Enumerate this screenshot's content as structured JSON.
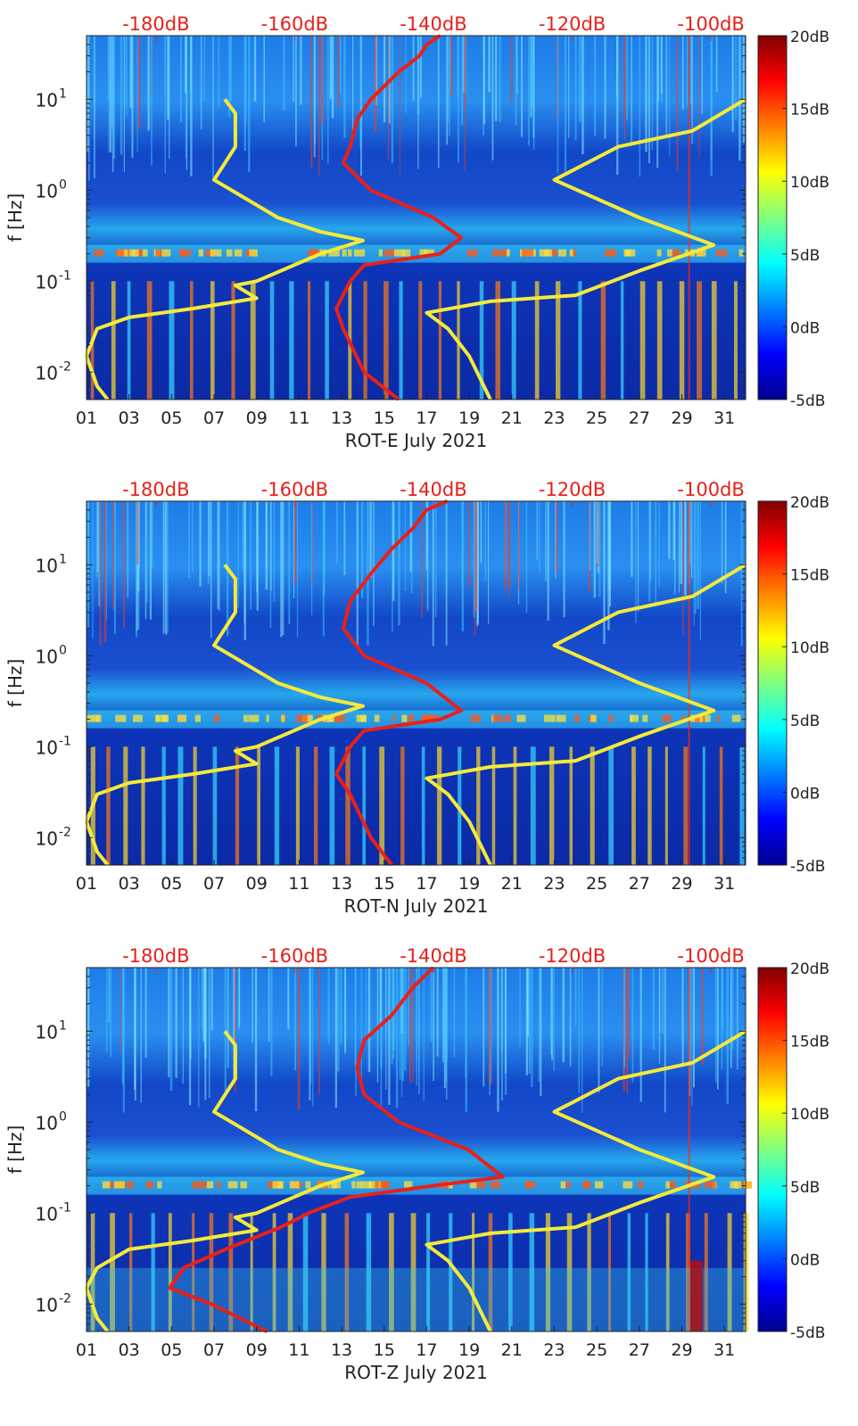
{
  "chart_data": [
    {
      "type": "heatmap",
      "title": "",
      "xlabel": "ROT-E July 2021",
      "ylabel": "f [Hz]",
      "x_ticks": [
        "01",
        "03",
        "05",
        "07",
        "09",
        "11",
        "13",
        "15",
        "17",
        "19",
        "21",
        "23",
        "25",
        "27",
        "29",
        "31"
      ],
      "x_range_days": [
        1,
        32
      ],
      "y_scale": "log",
      "y_range_hz": [
        0.005,
        50
      ],
      "y_ticks": [
        {
          "label_base": "10",
          "label_exp": "1",
          "value": 10
        },
        {
          "label_base": "10",
          "label_exp": "0",
          "value": 1
        },
        {
          "label_base": "10",
          "label_exp": "-1",
          "value": 0.1
        },
        {
          "label_base": "10",
          "label_exp": "-2",
          "value": 0.01
        }
      ],
      "top_axis_labels": [
        "-180dB",
        "-160dB",
        "-140dB",
        "-120dB",
        "-100dB"
      ],
      "top_axis_range_db": [
        -190,
        -95
      ],
      "colorbar": {
        "labels": [
          "20dB",
          "15dB",
          "10dB",
          "5dB",
          "0dB",
          "-5dB"
        ],
        "values": [
          20,
          15,
          10,
          5,
          0,
          -5
        ],
        "range": [
          -5,
          20
        ]
      },
      "series": [
        {
          "name": "red-psd-curve",
          "color": "#e8201a",
          "x_db": "top-axis",
          "points": [
            [
              -139,
              50
            ],
            [
              -141,
              40
            ],
            [
              -142,
              30
            ],
            [
              -145,
              20
            ],
            [
              -149,
              10
            ],
            [
              -151,
              6
            ],
            [
              -152,
              3
            ],
            [
              -153,
              2
            ],
            [
              -149,
              1
            ],
            [
              -140,
              0.5
            ],
            [
              -136,
              0.3
            ],
            [
              -139,
              0.2
            ],
            [
              -150,
              0.15
            ],
            [
              -152,
              0.1
            ],
            [
              -154,
              0.05
            ],
            [
              -153,
              0.03
            ],
            [
              -150,
              0.01
            ],
            [
              -145,
              0.005
            ]
          ]
        },
        {
          "name": "yellow-noise-model-low",
          "color": "#f5ea3a",
          "x_day": "bottom-axis",
          "points": [
            [
              7.5,
              10
            ],
            [
              8.0,
              7
            ],
            [
              8.0,
              3
            ],
            [
              7.0,
              1.3
            ],
            [
              10,
              0.5
            ],
            [
              12,
              0.35
            ],
            [
              14,
              0.28
            ],
            [
              12,
              0.2
            ],
            [
              9,
              0.1
            ],
            [
              8,
              0.09
            ],
            [
              9,
              0.065
            ],
            [
              6,
              0.05
            ],
            [
              3,
              0.04
            ],
            [
              1.5,
              0.03
            ],
            [
              1,
              0.015
            ],
            [
              1.5,
              0.007
            ],
            [
              2,
              0.005
            ]
          ]
        },
        {
          "name": "yellow-noise-model-high",
          "color": "#f5ea3a",
          "x_day": "bottom-axis",
          "points": [
            [
              32,
              10
            ],
            [
              29.5,
              4.5
            ],
            [
              26,
              3
            ],
            [
              23,
              1.3
            ],
            [
              27,
              0.5
            ],
            [
              30.5,
              0.25
            ],
            [
              27,
              0.13
            ],
            [
              24,
              0.07
            ],
            [
              20,
              0.06
            ],
            [
              17,
              0.045
            ],
            [
              18,
              0.03
            ],
            [
              19,
              0.015
            ],
            [
              20,
              0.005
            ]
          ]
        }
      ]
    },
    {
      "type": "heatmap",
      "title": "",
      "xlabel": "ROT-N July 2021",
      "ylabel": "f [Hz]",
      "x_ticks": [
        "01",
        "03",
        "05",
        "07",
        "09",
        "11",
        "13",
        "15",
        "17",
        "19",
        "21",
        "23",
        "25",
        "27",
        "29",
        "31"
      ],
      "x_range_days": [
        1,
        32
      ],
      "y_scale": "log",
      "y_range_hz": [
        0.005,
        50
      ],
      "y_ticks": [
        {
          "label_base": "10",
          "label_exp": "1",
          "value": 10
        },
        {
          "label_base": "10",
          "label_exp": "0",
          "value": 1
        },
        {
          "label_base": "10",
          "label_exp": "-1",
          "value": 0.1
        },
        {
          "label_base": "10",
          "label_exp": "-2",
          "value": 0.01
        }
      ],
      "top_axis_labels": [
        "-180dB",
        "-160dB",
        "-140dB",
        "-120dB",
        "-100dB"
      ],
      "top_axis_range_db": [
        -190,
        -95
      ],
      "colorbar": {
        "labels": [
          "20dB",
          "15dB",
          "10dB",
          "5dB",
          "0dB",
          "-5dB"
        ],
        "values": [
          20,
          15,
          10,
          5,
          0,
          -5
        ],
        "range": [
          -5,
          20
        ]
      },
      "series": [
        {
          "name": "red-psd-curve",
          "color": "#e8201a",
          "x_db": "top-axis",
          "points": [
            [
              -138,
              50
            ],
            [
              -141,
              40
            ],
            [
              -143,
              25
            ],
            [
              -146,
              15
            ],
            [
              -149,
              8
            ],
            [
              -152,
              4
            ],
            [
              -153,
              2
            ],
            [
              -150,
              1
            ],
            [
              -141,
              0.5
            ],
            [
              -136,
              0.25
            ],
            [
              -139,
              0.2
            ],
            [
              -150,
              0.15
            ],
            [
              -152,
              0.1
            ],
            [
              -154,
              0.05
            ],
            [
              -152,
              0.03
            ],
            [
              -149,
              0.01
            ],
            [
              -146,
              0.005
            ]
          ]
        },
        {
          "name": "yellow-noise-model-low",
          "color": "#f5ea3a",
          "x_day": "bottom-axis",
          "points": [
            [
              7.5,
              10
            ],
            [
              8.0,
              7
            ],
            [
              8.0,
              3
            ],
            [
              7.0,
              1.3
            ],
            [
              10,
              0.5
            ],
            [
              12,
              0.35
            ],
            [
              14,
              0.28
            ],
            [
              12,
              0.2
            ],
            [
              9,
              0.1
            ],
            [
              8,
              0.09
            ],
            [
              9,
              0.065
            ],
            [
              6,
              0.05
            ],
            [
              3,
              0.04
            ],
            [
              1.5,
              0.03
            ],
            [
              1,
              0.015
            ],
            [
              1.5,
              0.007
            ],
            [
              2,
              0.005
            ]
          ]
        },
        {
          "name": "yellow-noise-model-high",
          "color": "#f5ea3a",
          "x_day": "bottom-axis",
          "points": [
            [
              32,
              10
            ],
            [
              29.5,
              4.5
            ],
            [
              26,
              3
            ],
            [
              23,
              1.3
            ],
            [
              27,
              0.5
            ],
            [
              30.5,
              0.25
            ],
            [
              27,
              0.13
            ],
            [
              24,
              0.07
            ],
            [
              20,
              0.06
            ],
            [
              17,
              0.045
            ],
            [
              18,
              0.03
            ],
            [
              19,
              0.015
            ],
            [
              20,
              0.005
            ]
          ]
        }
      ]
    },
    {
      "type": "heatmap",
      "title": "",
      "xlabel": "ROT-Z July 2021",
      "ylabel": "f [Hz]",
      "x_ticks": [
        "01",
        "03",
        "05",
        "07",
        "09",
        "11",
        "13",
        "15",
        "17",
        "19",
        "21",
        "23",
        "25",
        "27",
        "29",
        "31"
      ],
      "x_range_days": [
        1,
        32
      ],
      "y_scale": "log",
      "y_range_hz": [
        0.005,
        50
      ],
      "y_ticks": [
        {
          "label_base": "10",
          "label_exp": "1",
          "value": 10
        },
        {
          "label_base": "10",
          "label_exp": "0",
          "value": 1
        },
        {
          "label_base": "10",
          "label_exp": "-1",
          "value": 0.1
        },
        {
          "label_base": "10",
          "label_exp": "-2",
          "value": 0.01
        }
      ],
      "top_axis_labels": [
        "-180dB",
        "-160dB",
        "-140dB",
        "-120dB",
        "-100dB"
      ],
      "top_axis_range_db": [
        -190,
        -95
      ],
      "colorbar": {
        "labels": [
          "20dB",
          "15dB",
          "10dB",
          "5dB",
          "0dB",
          "-5dB"
        ],
        "values": [
          20,
          15,
          10,
          5,
          0,
          -5
        ],
        "range": [
          -5,
          20
        ]
      },
      "series": [
        {
          "name": "red-psd-curve",
          "color": "#e8201a",
          "x_db": "top-axis",
          "points": [
            [
              -140,
              50
            ],
            [
              -143,
              30
            ],
            [
              -146,
              15
            ],
            [
              -150,
              8
            ],
            [
              -151,
              4
            ],
            [
              -150,
              2
            ],
            [
              -145,
              1
            ],
            [
              -135,
              0.5
            ],
            [
              -130,
              0.25
            ],
            [
              -140,
              0.2
            ],
            [
              -152,
              0.15
            ],
            [
              -158,
              0.1
            ],
            [
              -162,
              0.07
            ],
            [
              -170,
              0.04
            ],
            [
              -176,
              0.025
            ],
            [
              -178,
              0.015
            ],
            [
              -172,
              0.01
            ],
            [
              -164,
              0.005
            ]
          ]
        },
        {
          "name": "yellow-noise-model-low",
          "color": "#f5ea3a",
          "x_day": "bottom-axis",
          "points": [
            [
              7.5,
              10
            ],
            [
              8.0,
              7
            ],
            [
              8.0,
              3
            ],
            [
              7.0,
              1.3
            ],
            [
              10,
              0.5
            ],
            [
              12,
              0.35
            ],
            [
              14,
              0.28
            ],
            [
              12,
              0.2
            ],
            [
              9,
              0.1
            ],
            [
              8,
              0.09
            ],
            [
              9,
              0.065
            ],
            [
              6,
              0.05
            ],
            [
              3,
              0.04
            ],
            [
              1.5,
              0.025
            ],
            [
              1,
              0.015
            ],
            [
              1.5,
              0.007
            ],
            [
              2,
              0.005
            ]
          ]
        },
        {
          "name": "yellow-noise-model-high",
          "color": "#f5ea3a",
          "x_day": "bottom-axis",
          "points": [
            [
              32,
              10
            ],
            [
              29.5,
              4.5
            ],
            [
              26,
              3
            ],
            [
              23,
              1.3
            ],
            [
              27,
              0.5
            ],
            [
              30.5,
              0.25
            ],
            [
              27,
              0.13
            ],
            [
              24,
              0.07
            ],
            [
              20,
              0.06
            ],
            [
              17,
              0.045
            ],
            [
              18,
              0.03
            ],
            [
              19,
              0.015
            ],
            [
              20,
              0.005
            ]
          ]
        }
      ]
    }
  ]
}
